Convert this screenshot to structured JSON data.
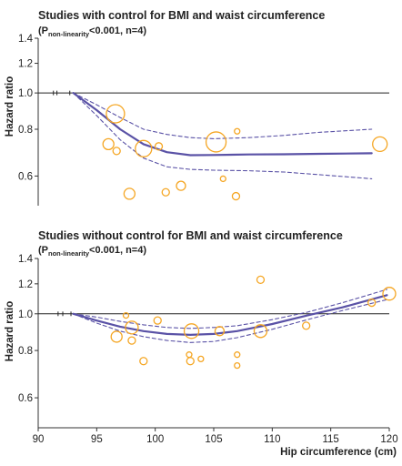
{
  "chart_data": [
    {
      "type": "scatter",
      "title": "Studies with control for BMI and waist circumference",
      "note_prefix": "(P",
      "note_subscript": "non-linearity",
      "note_suffix": "<0.001, n=4)",
      "ylabel": "Hazard ratio",
      "xlabel": "",
      "xlim": [
        90,
        120
      ],
      "ylim": [
        0.5,
        1.4
      ],
      "yscale": "log",
      "y_ticks": [
        "0.6",
        "0.8",
        "1.0",
        "1.2",
        "1.4"
      ],
      "reference_line": 1.0,
      "reference_ticks_x": [
        91.3,
        91.6,
        92.7
      ],
      "series": [
        {
          "type": "line",
          "style": "solid",
          "color": "#5a52a6",
          "x": [
            93,
            95,
            97,
            99,
            101,
            103,
            105,
            108,
            111,
            114,
            118.5
          ],
          "y": [
            1.0,
            0.9,
            0.8,
            0.73,
            0.695,
            0.682,
            0.683,
            0.685,
            0.686,
            0.688,
            0.69
          ]
        },
        {
          "type": "line",
          "style": "dashed",
          "color": "#5a52a6",
          "x": [
            93,
            95,
            97,
            99,
            101,
            103,
            105,
            108,
            111,
            114,
            118.5
          ],
          "y": [
            1.0,
            0.93,
            0.86,
            0.8,
            0.775,
            0.76,
            0.755,
            0.76,
            0.77,
            0.785,
            0.8
          ]
        },
        {
          "type": "line",
          "style": "dashed",
          "color": "#5a52a6",
          "x": [
            93,
            95,
            97,
            99,
            101,
            103,
            105,
            108,
            111,
            114,
            118.5
          ],
          "y": [
            1.0,
            0.87,
            0.75,
            0.67,
            0.635,
            0.625,
            0.622,
            0.62,
            0.615,
            0.605,
            0.59
          ]
        },
        {
          "type": "scatter",
          "color": "#f5a623",
          "points": [
            {
              "x": 96.6,
              "y": 0.88,
              "size": 10
            },
            {
              "x": 96.0,
              "y": 0.73,
              "size": 6
            },
            {
              "x": 96.7,
              "y": 0.7,
              "size": 4
            },
            {
              "x": 99.0,
              "y": 0.71,
              "size": 9
            },
            {
              "x": 100.3,
              "y": 0.72,
              "size": 4
            },
            {
              "x": 97.8,
              "y": 0.538,
              "size": 6
            },
            {
              "x": 100.9,
              "y": 0.543,
              "size": 4
            },
            {
              "x": 102.2,
              "y": 0.565,
              "size": 5
            },
            {
              "x": 105.2,
              "y": 0.74,
              "size": 11
            },
            {
              "x": 107.0,
              "y": 0.79,
              "size": 3
            },
            {
              "x": 105.8,
              "y": 0.59,
              "size": 3
            },
            {
              "x": 106.9,
              "y": 0.53,
              "size": 4
            },
            {
              "x": 119.2,
              "y": 0.73,
              "size": 8
            }
          ]
        }
      ]
    },
    {
      "type": "scatter",
      "title": "Studies without control for BMI and waist circumference",
      "note_prefix": "(P",
      "note_subscript": "non-linearity",
      "note_suffix": "<0.001, n=4)",
      "ylabel": "Hazard ratio",
      "xlabel": "Hip circumference (cm)",
      "xlim": [
        90,
        120
      ],
      "ylim": [
        0.5,
        1.4
      ],
      "yscale": "log",
      "y_ticks": [
        "0.6",
        "0.8",
        "1.0",
        "1.2",
        "1.4"
      ],
      "x_ticks": [
        "90",
        "95",
        "100",
        "105",
        "110",
        "115",
        "120"
      ],
      "reference_line": 1.0,
      "reference_ticks_x": [
        91.7,
        92.1,
        92.8
      ],
      "series": [
        {
          "type": "line",
          "style": "solid",
          "color": "#5a52a6",
          "x": [
            93,
            95,
            97,
            99,
            101,
            103,
            105,
            107,
            110,
            113,
            116,
            119.8
          ],
          "y": [
            1.0,
            0.96,
            0.925,
            0.9,
            0.885,
            0.88,
            0.885,
            0.9,
            0.94,
            0.99,
            1.04,
            1.12
          ]
        },
        {
          "type": "line",
          "style": "dashed",
          "color": "#5a52a6",
          "x": [
            93,
            95,
            97,
            99,
            101,
            103,
            105,
            107,
            110,
            113,
            116,
            119.8
          ],
          "y": [
            1.0,
            0.98,
            0.955,
            0.935,
            0.92,
            0.915,
            0.92,
            0.93,
            0.965,
            1.01,
            1.07,
            1.16
          ]
        },
        {
          "type": "line",
          "style": "dashed",
          "color": "#5a52a6",
          "x": [
            93,
            95,
            97,
            99,
            101,
            103,
            105,
            107,
            110,
            113,
            116,
            119.8
          ],
          "y": [
            1.0,
            0.945,
            0.9,
            0.87,
            0.85,
            0.84,
            0.845,
            0.865,
            0.91,
            0.965,
            1.02,
            1.09
          ]
        },
        {
          "type": "scatter",
          "color": "#f5a623",
          "points": [
            {
              "x": 96.7,
              "y": 0.87,
              "size": 6
            },
            {
              "x": 97.5,
              "y": 0.99,
              "size": 3
            },
            {
              "x": 98.0,
              "y": 0.92,
              "size": 7
            },
            {
              "x": 98.0,
              "y": 0.85,
              "size": 4
            },
            {
              "x": 99.0,
              "y": 0.75,
              "size": 4
            },
            {
              "x": 100.2,
              "y": 0.96,
              "size": 4
            },
            {
              "x": 102.9,
              "y": 0.78,
              "size": 3
            },
            {
              "x": 103.1,
              "y": 0.9,
              "size": 8
            },
            {
              "x": 103.0,
              "y": 0.75,
              "size": 4
            },
            {
              "x": 103.9,
              "y": 0.76,
              "size": 3
            },
            {
              "x": 105.5,
              "y": 0.9,
              "size": 5
            },
            {
              "x": 107.0,
              "y": 0.78,
              "size": 3
            },
            {
              "x": 107.0,
              "y": 0.73,
              "size": 3
            },
            {
              "x": 109.0,
              "y": 0.9,
              "size": 7
            },
            {
              "x": 109.0,
              "y": 1.23,
              "size": 4
            },
            {
              "x": 112.9,
              "y": 0.93,
              "size": 4
            },
            {
              "x": 118.5,
              "y": 1.07,
              "size": 4
            },
            {
              "x": 120.0,
              "y": 1.13,
              "size": 7
            }
          ]
        }
      ]
    }
  ]
}
